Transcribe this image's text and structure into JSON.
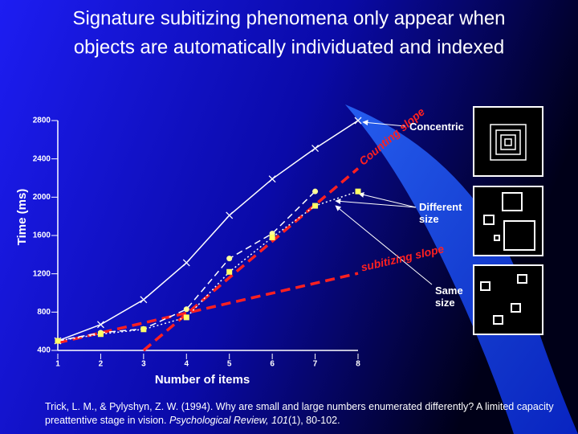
{
  "slide": {
    "title": [
      "Signature subitizing phenomena only appear when",
      "objects are automatically individuated and indexed"
    ],
    "citation": [
      "Trick, L. M., & Pylyshyn, Z. W. (1994). Why are small and large numbers enumerated differently? A limited capacity preattentive stage in vision. ",
      "Psychological Review, 101",
      "(1), 80-102."
    ]
  },
  "chart_data": {
    "type": "line",
    "x_label": "Number of items",
    "y_label": "Time (ms)",
    "x": [
      1,
      2,
      3,
      4,
      5,
      6,
      7,
      8
    ],
    "xlim": [
      1,
      8
    ],
    "xticks": [
      1,
      2,
      3,
      4,
      5,
      6,
      7,
      8
    ],
    "ylim": [
      400,
      2800
    ],
    "yticks": [
      400,
      800,
      1200,
      1600,
      2000,
      2400,
      2800
    ],
    "series": [
      {
        "name": "Concentric",
        "color": "#ffffff",
        "marker": "x",
        "dash": "solid",
        "values": [
          500,
          670,
          930,
          1315,
          1810,
          2190,
          2510,
          2800
        ]
      },
      {
        "name": "Different size",
        "color": "#ffffff",
        "marker": "circle",
        "dash": "dashed",
        "values": [
          500,
          585,
          625,
          830,
          1360,
          1620,
          2060,
          null
        ]
      },
      {
        "name": "Same size",
        "color": "#ffffff",
        "marker": "square",
        "dash": "dotted",
        "values": [
          500,
          570,
          620,
          745,
          1220,
          1580,
          1910,
          2060
        ]
      }
    ],
    "annotations": [
      {
        "text": "Counting slope",
        "color": "#ff2020",
        "x": [
          3,
          8
        ],
        "values": [
          400,
          2300
        ]
      },
      {
        "text": "subitizing slope",
        "color": "#ff2020",
        "x": [
          1,
          8
        ],
        "values": [
          480,
          1205
        ]
      }
    ]
  }
}
